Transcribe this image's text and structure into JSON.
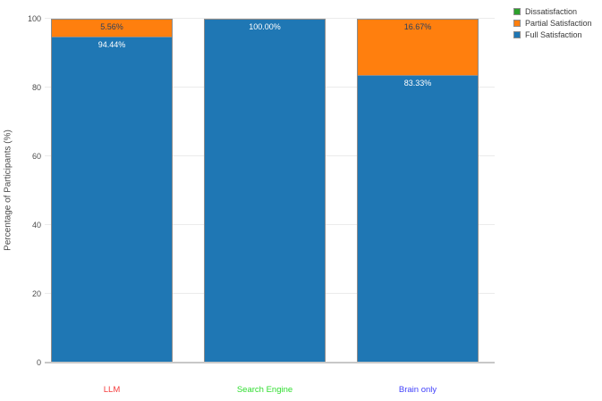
{
  "chart_data": {
    "type": "bar",
    "stacked": true,
    "ylabel": "Percentage of Participants (%)",
    "ylim": [
      0,
      100
    ],
    "yticks": [
      0,
      20,
      40,
      60,
      80,
      100
    ],
    "grid": true,
    "legend_position": "top-right",
    "categories": [
      {
        "label": "LLM",
        "color": "#f53d3d"
      },
      {
        "label": "Search Engine",
        "color": "#2fdd2f"
      },
      {
        "label": "Brain only",
        "color": "#4242fb"
      }
    ],
    "series": [
      {
        "name": "Dissatisfaction",
        "color": "#2ca02c",
        "label_color": "#ffffff",
        "values": [
          0,
          0,
          0
        ],
        "labels": [
          "",
          "",
          ""
        ]
      },
      {
        "name": "Partial Satisfaction",
        "color": "#ff7f0e",
        "label_color": "#2a3f5f",
        "values": [
          5.56,
          0,
          16.67
        ],
        "labels": [
          "5.56%",
          "",
          "16.67%"
        ]
      },
      {
        "name": "Full Satisfaction",
        "color": "#1f77b4",
        "label_color": "#ffffff",
        "values": [
          94.44,
          100.0,
          83.33
        ],
        "labels": [
          "94.44%",
          "100.00%",
          "83.33%"
        ]
      }
    ]
  }
}
